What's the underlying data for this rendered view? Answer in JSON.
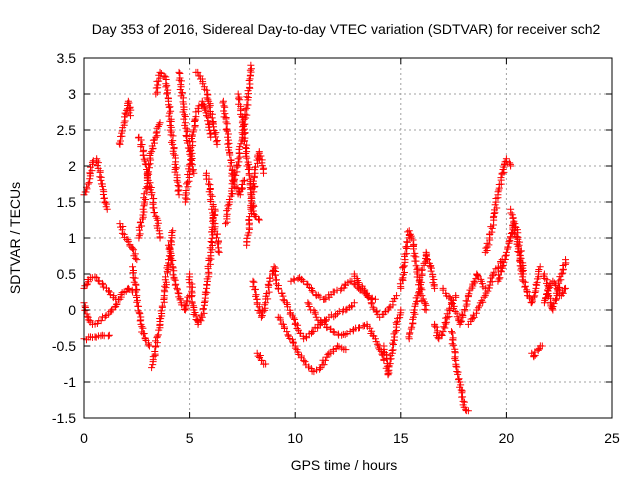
{
  "chart_data": {
    "type": "scatter",
    "title": "Day 353 of 2016, Sidereal Day-to-day VTEC variation (SDTVAR) for receiver sch2",
    "xlabel": "GPS time / hours",
    "ylabel": "SDTVAR / TECUs",
    "xlim": [
      0,
      25
    ],
    "ylim": [
      -1.5,
      3.5
    ],
    "xticks": [
      0,
      5,
      10,
      15,
      20,
      25
    ],
    "xtick_labels": [
      "0",
      "5",
      "10",
      "15",
      "20",
      "25"
    ],
    "yticks": [
      -1.5,
      -1,
      -0.5,
      0,
      0.5,
      1,
      1.5,
      2,
      2.5,
      3,
      3.5
    ],
    "ytick_labels": [
      "-1.5",
      "-1",
      "-0.5",
      "0",
      "0.5",
      "1",
      "1.5",
      "2",
      "2.5",
      "3",
      "3.5"
    ],
    "grid": true,
    "marker": "+",
    "color": "#ff0000",
    "series": [
      {
        "name": "SDTVAR",
        "tracks": [
          {
            "x": [
              0.0,
              0.2,
              0.4,
              0.6,
              0.8,
              1.0,
              1.1
            ],
            "y": [
              1.6,
              1.75,
              2.05,
              2.1,
              1.8,
              1.5,
              1.4
            ]
          },
          {
            "x": [
              0.0,
              0.3,
              0.6,
              0.9,
              1.2,
              1.5
            ],
            "y": [
              0.3,
              0.45,
              0.45,
              0.35,
              0.25,
              0.15
            ]
          },
          {
            "x": [
              0.0,
              0.2,
              0.4,
              0.7,
              1.0,
              1.3
            ],
            "y": [
              0.1,
              -0.1,
              -0.2,
              -0.15,
              -0.1,
              0.0
            ]
          },
          {
            "x": [
              0.0,
              0.4,
              0.8,
              1.2
            ],
            "y": [
              -0.4,
              -0.38,
              -0.36,
              -0.35
            ]
          },
          {
            "x": [
              1.3,
              1.5,
              1.7,
              1.9,
              2.1,
              2.3
            ],
            "y": [
              0.0,
              0.05,
              0.15,
              0.25,
              0.3,
              0.25
            ]
          },
          {
            "x": [
              1.7,
              1.9,
              2.1,
              2.2
            ],
            "y": [
              2.3,
              2.6,
              2.9,
              2.7
            ]
          },
          {
            "x": [
              1.7,
              1.9,
              2.1,
              2.3,
              2.5
            ],
            "y": [
              1.2,
              1.05,
              0.95,
              0.85,
              0.7
            ]
          },
          {
            "x": [
              2.3,
              2.5,
              2.7,
              2.9,
              3.1
            ],
            "y": [
              0.6,
              0.2,
              -0.2,
              -0.4,
              -0.5
            ]
          },
          {
            "x": [
              2.6,
              2.8,
              3.0,
              3.2,
              3.4,
              3.6
            ],
            "y": [
              1.0,
              1.4,
              1.8,
              2.2,
              2.4,
              2.6
            ]
          },
          {
            "x": [
              2.6,
              2.8,
              3.0,
              3.2,
              3.4,
              3.6
            ],
            "y": [
              2.4,
              2.2,
              1.9,
              1.6,
              1.3,
              1.0
            ]
          },
          {
            "x": [
              3.2,
              3.4,
              3.6,
              3.8,
              4.0,
              4.2
            ],
            "y": [
              -0.8,
              -0.5,
              -0.2,
              0.2,
              0.7,
              1.1
            ]
          },
          {
            "x": [
              3.4,
              3.6,
              3.8,
              4.0,
              4.2,
              4.4,
              4.5
            ],
            "y": [
              3.0,
              3.3,
              3.25,
              2.9,
              2.3,
              1.8,
              1.6
            ]
          },
          {
            "x": [
              4.0,
              4.2,
              4.4,
              4.6,
              4.8,
              5.0
            ],
            "y": [
              0.9,
              0.6,
              0.3,
              0.1,
              0.0,
              0.2
            ]
          },
          {
            "x": [
              4.5,
              4.6,
              4.8,
              5.0,
              5.2
            ],
            "y": [
              3.3,
              3.1,
              2.6,
              2.2,
              1.9
            ]
          },
          {
            "x": [
              4.8,
              5.0,
              5.2,
              5.4,
              5.6,
              5.8,
              6.0
            ],
            "y": [
              1.5,
              2.0,
              2.5,
              2.8,
              2.9,
              2.7,
              2.4
            ]
          },
          {
            "x": [
              5.0,
              5.2,
              5.4,
              5.6,
              5.8,
              6.0,
              6.2
            ],
            "y": [
              0.5,
              0.0,
              -0.2,
              -0.1,
              0.3,
              0.8,
              1.4
            ]
          },
          {
            "x": [
              5.3,
              5.5,
              5.7,
              5.9,
              6.1,
              6.3
            ],
            "y": [
              3.3,
              3.25,
              3.1,
              2.9,
              2.6,
              2.3
            ]
          },
          {
            "x": [
              5.8,
              6.0,
              6.2,
              6.4
            ],
            "y": [
              1.9,
              1.6,
              1.2,
              0.8
            ]
          },
          {
            "x": [
              6.6,
              6.8,
              7.0,
              7.2,
              7.4,
              7.6
            ],
            "y": [
              2.9,
              2.4,
              1.9,
              1.7,
              1.6,
              1.8
            ]
          },
          {
            "x": [
              6.7,
              6.9,
              7.1,
              7.3,
              7.5,
              7.7,
              7.9
            ],
            "y": [
              1.2,
              1.5,
              1.8,
              2.1,
              2.4,
              2.8,
              3.4
            ]
          },
          {
            "x": [
              7.3,
              7.5,
              7.7,
              7.9,
              8.1,
              8.3
            ],
            "y": [
              3.0,
              2.6,
              2.2,
              1.6,
              1.3,
              1.25
            ]
          },
          {
            "x": [
              7.7,
              7.9,
              8.1,
              8.3,
              8.5
            ],
            "y": [
              0.9,
              1.4,
              1.9,
              2.2,
              1.9
            ]
          },
          {
            "x": [
              8.2,
              8.4,
              8.6
            ],
            "y": [
              -0.6,
              -0.7,
              -0.75
            ]
          },
          {
            "x": [
              8.0,
              8.2,
              8.4,
              8.6,
              8.8,
              9.0,
              9.2
            ],
            "y": [
              0.4,
              0.1,
              -0.1,
              0.1,
              0.4,
              0.6,
              0.3
            ]
          },
          {
            "x": [
              9.2,
              9.6,
              10.0,
              10.4,
              10.8,
              11.2,
              11.6,
              12.0,
              12.4,
              12.8
            ],
            "y": [
              0.3,
              0.1,
              -0.2,
              -0.4,
              -0.3,
              -0.2,
              -0.1,
              -0.05,
              0.0,
              0.1
            ]
          },
          {
            "x": [
              9.2,
              9.6,
              10.0,
              10.4,
              10.8,
              11.2,
              11.6,
              12.0,
              12.4
            ],
            "y": [
              -0.1,
              -0.3,
              -0.5,
              -0.7,
              -0.85,
              -0.8,
              -0.6,
              -0.5,
              -0.55
            ]
          },
          {
            "x": [
              9.8,
              10.2,
              10.6,
              11.0,
              11.4,
              11.8,
              12.2,
              12.6,
              13.0,
              13.4,
              13.8
            ],
            "y": [
              0.4,
              0.45,
              0.35,
              0.2,
              0.15,
              0.25,
              0.3,
              0.4,
              0.3,
              0.2,
              0.15
            ]
          },
          {
            "x": [
              10.6,
              11.0,
              11.4,
              11.8,
              12.2,
              12.6,
              13.0,
              13.4,
              13.8,
              14.2
            ],
            "y": [
              0.1,
              -0.1,
              -0.2,
              -0.3,
              -0.35,
              -0.3,
              -0.25,
              -0.2,
              -0.4,
              -0.7
            ]
          },
          {
            "x": [
              12.8,
              13.2,
              13.6,
              14.0,
              14.4,
              14.8
            ],
            "y": [
              0.5,
              0.3,
              0.1,
              -0.1,
              0.0,
              0.2
            ]
          },
          {
            "x": [
              14.2,
              14.4,
              14.6,
              14.8,
              15.0
            ],
            "y": [
              -0.5,
              -0.9,
              -0.6,
              -0.2,
              0.0
            ]
          },
          {
            "x": [
              15.0,
              15.2,
              15.4,
              15.6,
              15.8,
              16.0,
              16.2
            ],
            "y": [
              0.3,
              0.7,
              1.1,
              0.9,
              0.5,
              0.2,
              0.0
            ]
          },
          {
            "x": [
              15.4,
              15.6,
              15.8,
              16.0,
              16.2,
              16.4,
              16.6
            ],
            "y": [
              -0.4,
              -0.1,
              0.2,
              0.5,
              0.8,
              0.6,
              0.3
            ]
          },
          {
            "x": [
              16.6,
              16.8,
              17.0,
              17.2,
              17.4,
              17.6
            ],
            "y": [
              -0.2,
              -0.4,
              -0.3,
              -0.1,
              0.1,
              0.2
            ]
          },
          {
            "x": [
              17.4,
              17.6,
              17.8,
              18.0,
              18.2
            ],
            "y": [
              -0.3,
              -0.7,
              -1.0,
              -1.35,
              -1.4
            ]
          },
          {
            "x": [
              17.0,
              17.4,
              17.8,
              18.2,
              18.6,
              19.0
            ],
            "y": [
              0.3,
              0.1,
              -0.2,
              0.2,
              0.5,
              0.3
            ]
          },
          {
            "x": [
              18.2,
              18.6,
              19.0,
              19.4,
              19.8
            ],
            "y": [
              -0.2,
              0.0,
              0.2,
              0.5,
              0.7
            ]
          },
          {
            "x": [
              19.0,
              19.2,
              19.4,
              19.6,
              19.8,
              20.0,
              20.2
            ],
            "y": [
              0.8,
              1.0,
              1.3,
              1.6,
              1.9,
              2.1,
              2.0
            ]
          },
          {
            "x": [
              19.6,
              19.8,
              20.0,
              20.2,
              20.4,
              20.6,
              20.8
            ],
            "y": [
              0.4,
              0.6,
              0.8,
              1.0,
              1.2,
              0.9,
              0.5
            ]
          },
          {
            "x": [
              20.2,
              20.4,
              20.6,
              20.8,
              21.0,
              21.2,
              21.4,
              21.6
            ],
            "y": [
              1.4,
              1.1,
              0.8,
              0.4,
              0.2,
              0.1,
              0.3,
              0.6
            ]
          },
          {
            "x": [
              21.2,
              21.3,
              21.5,
              21.7
            ],
            "y": [
              -0.6,
              -0.65,
              -0.55,
              -0.5
            ]
          },
          {
            "x": [
              21.8,
              22.0,
              22.2,
              22.4,
              22.6,
              22.8
            ],
            "y": [
              0.5,
              0.2,
              0.0,
              0.2,
              0.5,
              0.7
            ]
          },
          {
            "x": [
              21.8,
              22.0,
              22.2,
              22.4,
              22.6,
              22.8
            ],
            "y": [
              0.1,
              0.3,
              0.4,
              0.3,
              0.2,
              0.3
            ]
          }
        ]
      }
    ]
  }
}
